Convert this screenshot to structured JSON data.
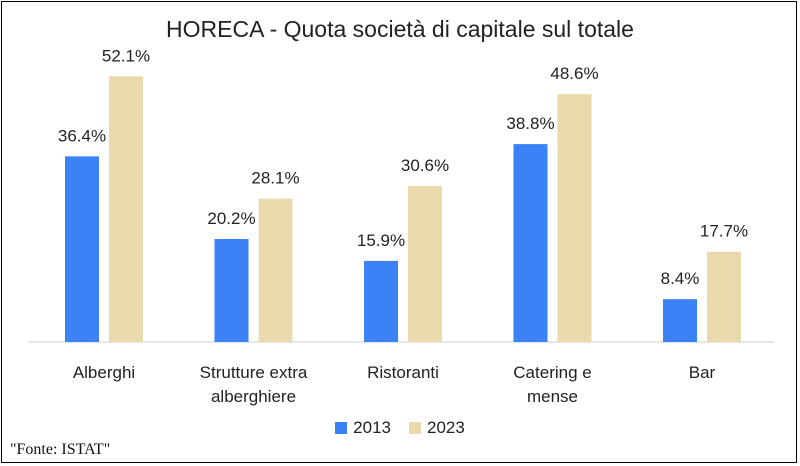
{
  "chart_data": {
    "type": "bar",
    "title": "HORECA - Quota società di capitale sul totale",
    "categories": [
      [
        "Alberghi"
      ],
      [
        "Strutture extra",
        "alberghiere"
      ],
      [
        "Ristoranti"
      ],
      [
        "Catering e",
        "mense"
      ],
      [
        "Bar"
      ]
    ],
    "series": [
      {
        "name": "2013",
        "color": "#3b82f6",
        "values": [
          36.4,
          20.2,
          15.9,
          38.8,
          8.4
        ],
        "labels": [
          "36.4%",
          "20.2%",
          "15.9%",
          "38.8%",
          "8.4%"
        ]
      },
      {
        "name": "2023",
        "color": "#ead9ad",
        "values": [
          52.1,
          28.1,
          30.6,
          48.6,
          17.7
        ],
        "labels": [
          "52.1%",
          "28.1%",
          "30.6%",
          "48.6%",
          "17.7%"
        ]
      }
    ],
    "ylim": [
      0,
      55
    ],
    "xlabel": "",
    "ylabel": "",
    "grid": false,
    "legend": "bottom"
  },
  "source": "\"Fonte: ISTAT\""
}
